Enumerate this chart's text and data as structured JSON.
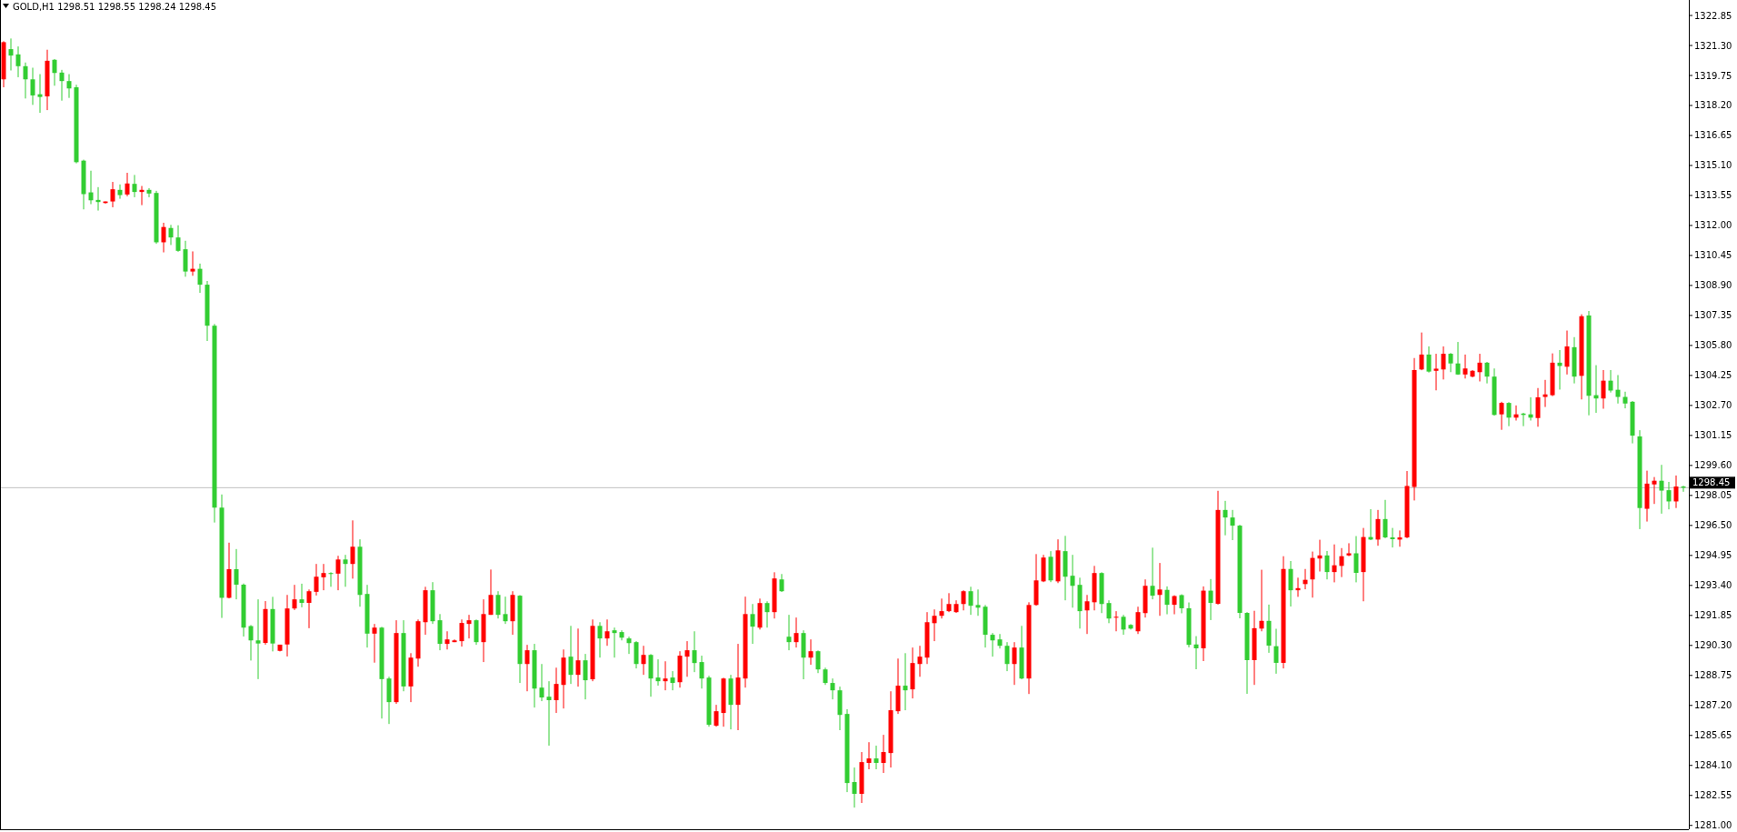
{
  "chart_data": {
    "type": "candlestick",
    "title": "GOLD,H1  1298.51 1298.55 1298.24 1298.45",
    "categories": [
      null,
      null,
      null,
      null,
      null,
      null,
      null,
      null,
      null,
      null,
      null,
      null,
      null,
      null,
      null,
      null,
      null,
      null,
      null,
      null,
      null,
      null,
      null,
      null,
      null,
      null,
      null,
      null,
      null,
      null,
      null,
      null,
      null,
      null,
      null,
      null,
      null,
      null,
      null,
      null,
      null,
      null,
      null,
      null,
      null,
      null,
      null,
      null,
      null,
      null,
      null,
      null,
      null,
      null,
      null,
      null,
      null,
      null,
      null,
      null,
      null,
      null,
      null,
      null,
      null,
      null,
      null,
      null,
      null,
      null,
      null,
      null,
      null,
      null,
      null,
      null,
      null,
      null,
      null,
      null,
      null,
      null,
      null,
      null,
      null,
      null,
      null,
      null,
      null,
      null,
      null,
      null,
      null,
      null,
      null,
      null,
      null,
      null,
      null,
      null,
      null,
      null,
      null,
      null,
      null,
      null,
      null,
      null,
      null,
      null,
      null,
      null,
      null,
      null,
      null,
      null,
      null,
      null,
      null,
      null,
      null,
      null,
      null,
      null,
      null,
      null,
      null,
      null,
      null,
      null,
      null,
      null,
      null,
      null,
      null,
      null,
      null,
      null,
      null,
      null,
      null,
      null,
      null,
      null,
      null,
      null,
      null,
      null,
      null,
      null,
      null,
      null,
      null,
      null,
      null,
      null,
      null,
      null,
      null,
      null,
      null,
      null,
      null,
      null,
      null,
      null,
      null,
      null,
      null,
      null,
      null,
      null,
      null,
      null,
      null,
      null,
      null,
      null,
      null,
      null,
      null,
      null,
      null,
      null,
      null,
      null,
      null,
      null,
      null,
      null,
      null,
      null,
      null,
      null,
      null,
      null,
      null,
      null,
      null,
      null,
      null,
      null,
      null,
      null,
      null,
      null,
      null,
      null,
      null,
      null,
      null,
      null,
      null,
      null,
      null,
      null,
      null,
      null,
      null,
      null,
      null,
      null,
      null,
      null,
      null,
      null,
      null,
      null,
      null,
      null,
      null,
      null
    ],
    "ohlc": [
      [
        1319.55,
        1321.52,
        1319.14,
        1321.47
      ],
      [
        1321.11,
        1321.66,
        1320.01,
        1320.78
      ],
      [
        1320.84,
        1321.25,
        1319.66,
        1320.23
      ],
      [
        1320.23,
        1320.42,
        1318.56,
        1319.55
      ],
      [
        1319.55,
        1320.15,
        1318.23,
        1318.72
      ],
      [
        1318.78,
        1319.82,
        1317.82,
        1318.64
      ],
      [
        1318.67,
        1321.08,
        1317.96,
        1320.51
      ],
      [
        1320.56,
        1320.6,
        1319.22,
        1319.88
      ],
      [
        1319.9,
        1320.04,
        1318.45,
        1319.46
      ],
      [
        1319.46,
        1319.82,
        1318.59,
        1319.08
      ],
      [
        1319.14,
        1319.27,
        1315.21,
        1315.27
      ],
      [
        1315.35,
        1315.4,
        1312.83,
        1313.62
      ],
      [
        1313.71,
        1314.83,
        1313.1,
        1313.3
      ],
      [
        1313.32,
        1313.98,
        1312.77,
        1313.21
      ],
      [
        1313.16,
        1313.24,
        1313.13,
        1313.24
      ],
      [
        1313.24,
        1314.25,
        1312.94,
        1313.87
      ],
      [
        1313.84,
        1314.12,
        1313.38,
        1313.57
      ],
      [
        1313.6,
        1314.72,
        1313.51,
        1314.17
      ],
      [
        1314.15,
        1314.61,
        1313.46,
        1313.73
      ],
      [
        1313.73,
        1314.04,
        1313.05,
        1313.84
      ],
      [
        1313.84,
        1313.93,
        1313.46,
        1313.65
      ],
      [
        1313.68,
        1313.79,
        1311.05,
        1311.13
      ],
      [
        1311.13,
        1312.14,
        1310.61,
        1311.92
      ],
      [
        1311.87,
        1312.03,
        1310.99,
        1311.38
      ],
      [
        1311.38,
        1312.01,
        1310.64,
        1310.69
      ],
      [
        1310.77,
        1311.21,
        1309.35,
        1309.62
      ],
      [
        1309.62,
        1310.66,
        1309.4,
        1309.76
      ],
      [
        1309.76,
        1310.03,
        1308.52,
        1308.94
      ],
      [
        1308.94,
        1309.13,
        1306.03,
        1306.82
      ],
      [
        1306.82,
        1306.91,
        1296.65,
        1297.42
      ],
      [
        1297.42,
        1298.1,
        1291.72,
        1292.76
      ],
      [
        1292.76,
        1295.61,
        1292.73,
        1294.24
      ],
      [
        1294.24,
        1295.28,
        1292.68,
        1293.44
      ],
      [
        1293.44,
        1293.5,
        1290.76,
        1291.22
      ],
      [
        1291.3,
        1291.35,
        1289.52,
        1290.56
      ],
      [
        1290.56,
        1292.68,
        1288.56,
        1290.4
      ],
      [
        1290.43,
        1292.59,
        1290.34,
        1292.18
      ],
      [
        1292.18,
        1292.81,
        1289.99,
        1290.4
      ],
      [
        1290.02,
        1290.34,
        1289.99,
        1290.34
      ],
      [
        1290.35,
        1292.91,
        1289.73,
        1292.21
      ],
      [
        1292.21,
        1293.43,
        1292.13,
        1292.68
      ],
      [
        1292.68,
        1293.49,
        1292.27,
        1292.5
      ],
      [
        1292.5,
        1293.19,
        1291.19,
        1293.1
      ],
      [
        1293.07,
        1294.51,
        1292.88,
        1293.85
      ],
      [
        1293.82,
        1294.51,
        1293.15,
        1294.04
      ],
      [
        1294.04,
        1294.08,
        1293.33,
        1293.99
      ],
      [
        1294.01,
        1294.93,
        1293.15,
        1294.74
      ],
      [
        1294.74,
        1294.98,
        1293.33,
        1294.51
      ],
      [
        1294.51,
        1296.76,
        1293.75,
        1295.4
      ],
      [
        1295.4,
        1295.78,
        1292.3,
        1292.91
      ],
      [
        1292.96,
        1293.43,
        1290.19,
        1290.91
      ],
      [
        1290.91,
        1291.41,
        1289.41,
        1291.22
      ],
      [
        1291.22,
        1291.26,
        1286.52,
        1288.56
      ],
      [
        1288.59,
        1288.68,
        1286.24,
        1287.37
      ],
      [
        1287.37,
        1291.6,
        1287.28,
        1290.94
      ],
      [
        1290.94,
        1291.6,
        1287.93,
        1288.18
      ],
      [
        1288.18,
        1289.9,
        1287.37,
        1289.67
      ],
      [
        1289.62,
        1291.64,
        1289.2,
        1291.55
      ],
      [
        1291.5,
        1293.33,
        1290.85,
        1293.15
      ],
      [
        1293.15,
        1293.57,
        1291.41,
        1291.55
      ],
      [
        1291.6,
        1291.92,
        1290.05,
        1290.38
      ],
      [
        1290.38,
        1291.03,
        1290.09,
        1290.61
      ],
      [
        1290.47,
        1290.61,
        1290.47,
        1290.56
      ],
      [
        1290.52,
        1291.64,
        1290.24,
        1291.46
      ],
      [
        1291.41,
        1291.88,
        1290.66,
        1291.6
      ],
      [
        1291.6,
        1291.64,
        1290.33,
        1290.47
      ],
      [
        1290.47,
        1292.68,
        1289.44,
        1291.92
      ],
      [
        1291.88,
        1294.22,
        1291.88,
        1292.91
      ],
      [
        1292.91,
        1293.1,
        1291.69,
        1291.88
      ],
      [
        1291.92,
        1292.82,
        1291.41,
        1291.55
      ],
      [
        1291.55,
        1293.1,
        1290.85,
        1292.91
      ],
      [
        1292.87,
        1292.9,
        1288.36,
        1289.34
      ],
      [
        1289.34,
        1290.33,
        1287.93,
        1290.05
      ],
      [
        1290.05,
        1290.38,
        1287.09,
        1288.07
      ],
      [
        1288.12,
        1289.34,
        1287.42,
        1287.61
      ],
      [
        1287.65,
        1288.45,
        1285.12,
        1287.47
      ],
      [
        1287.47,
        1289.15,
        1286.81,
        1288.31
      ],
      [
        1288.26,
        1290.09,
        1287.04,
        1289.67
      ],
      [
        1289.72,
        1291.31,
        1288.31,
        1288.78
      ],
      [
        1288.78,
        1291.17,
        1288.17,
        1289.53
      ],
      [
        1289.53,
        1289.86,
        1287.51,
        1288.5
      ],
      [
        1288.55,
        1291.64,
        1288.45,
        1291.31
      ],
      [
        1291.31,
        1291.5,
        1289.67,
        1290.66
      ],
      [
        1290.66,
        1291.64,
        1290.28,
        1291.03
      ],
      [
        1291.08,
        1291.22,
        1289.67,
        1290.94
      ],
      [
        1290.99,
        1291.08,
        1290.56,
        1290.7
      ],
      [
        1290.66,
        1290.75,
        1289.86,
        1290.42
      ],
      [
        1290.47,
        1290.52,
        1289.11,
        1289.34
      ],
      [
        1289.34,
        1290.28,
        1288.78,
        1289.81
      ],
      [
        1289.81,
        1289.85,
        1287.65,
        1288.59
      ],
      [
        1288.64,
        1289.58,
        1288.22,
        1288.45
      ],
      [
        1288.45,
        1289.48,
        1287.98,
        1288.59
      ],
      [
        1288.64,
        1288.97,
        1287.98,
        1288.36
      ],
      [
        1288.4,
        1290,
        1288.12,
        1289.77
      ],
      [
        1289.72,
        1290.52,
        1288.68,
        1290.05
      ],
      [
        1290.05,
        1291.03,
        1288.92,
        1289.39
      ],
      [
        1289.44,
        1289.77,
        1288.07,
        1288.59
      ],
      [
        1288.64,
        1288.73,
        1286.1,
        1286.2
      ],
      [
        1286.15,
        1287.23,
        1286.1,
        1286.9
      ],
      [
        1286.81,
        1288.63,
        1286.1,
        1288.59
      ],
      [
        1288.59,
        1288.78,
        1285.96,
        1287.23
      ],
      [
        1287.23,
        1290.38,
        1285.92,
        1288.64
      ],
      [
        1288.59,
        1292.82,
        1288.12,
        1291.92
      ],
      [
        1291.92,
        1292.44,
        1290.38,
        1291.27
      ],
      [
        1291.22,
        1292.72,
        1291.12,
        1292.49
      ],
      [
        1292.49,
        1292.58,
        1291.22,
        1292.02
      ],
      [
        1292.02,
        1294.08,
        1291.69,
        1293.76
      ],
      [
        1293.71,
        1293.99,
        1293.06,
        1293.1
      ],
      [
        1290.75,
        1291.88,
        1290.05,
        1290.47
      ],
      [
        1290.47,
        1291.74,
        1290.19,
        1290.94
      ],
      [
        1290.94,
        1291.08,
        1288.55,
        1289.67
      ],
      [
        1289.67,
        1290.61,
        1289.3,
        1290
      ],
      [
        1290,
        1290.04,
        1288.87,
        1289.06
      ],
      [
        1289.06,
        1289.15,
        1288.26,
        1288.36
      ],
      [
        1288.36,
        1288.59,
        1287.51,
        1287.98
      ],
      [
        1287.98,
        1288.17,
        1285.92,
        1286.71
      ],
      [
        1286.76,
        1287,
        1282.72,
        1283.19
      ],
      [
        1283.24,
        1283.99,
        1281.92,
        1282.63
      ],
      [
        1282.63,
        1284.79,
        1282.16,
        1284.27
      ],
      [
        1284.23,
        1285.3,
        1283.9,
        1284.46
      ],
      [
        1284.46,
        1285.12,
        1283.9,
        1284.23
      ],
      [
        1284.23,
        1285.68,
        1283.71,
        1284.79
      ],
      [
        1284.74,
        1287.93,
        1283.99,
        1286.95
      ],
      [
        1286.9,
        1289.62,
        1286.76,
        1288.22
      ],
      [
        1288.22,
        1289.9,
        1286.95,
        1287.98
      ],
      [
        1288.03,
        1290.19,
        1287.56,
        1289.39
      ],
      [
        1289.34,
        1290.28,
        1288.68,
        1289.72
      ],
      [
        1289.67,
        1292.02,
        1289.34,
        1291.5
      ],
      [
        1291.45,
        1292.16,
        1290.52,
        1291.83
      ],
      [
        1291.83,
        1292.72,
        1291.69,
        1292.07
      ],
      [
        1292.07,
        1293,
        1292.02,
        1292.44
      ],
      [
        1292.02,
        1292.63,
        1291.98,
        1292.44
      ],
      [
        1292.44,
        1293.15,
        1292.11,
        1293.1
      ],
      [
        1293.1,
        1293.33,
        1291.88,
        1292.35
      ],
      [
        1292.39,
        1293.19,
        1291.83,
        1292.25
      ],
      [
        1292.3,
        1292.39,
        1290.19,
        1290.85
      ],
      [
        1290.85,
        1290.94,
        1289.72,
        1290.56
      ],
      [
        1290.61,
        1290.89,
        1290.14,
        1290.28
      ],
      [
        1290.28,
        1290.47,
        1288.97,
        1289.34
      ],
      [
        1289.34,
        1290.47,
        1288.26,
        1290.19
      ],
      [
        1290.19,
        1291.31,
        1288.55,
        1288.59
      ],
      [
        1288.59,
        1292.53,
        1287.79,
        1292.39
      ],
      [
        1292.39,
        1295.02,
        1292.35,
        1293.66
      ],
      [
        1293.61,
        1294.98,
        1293.57,
        1294.84
      ],
      [
        1294.88,
        1295.17,
        1293.57,
        1293.66
      ],
      [
        1293.61,
        1295.78,
        1293.52,
        1295.21
      ],
      [
        1295.17,
        1295.96,
        1292.63,
        1293.85
      ],
      [
        1293.9,
        1294.98,
        1292.25,
        1293.38
      ],
      [
        1293.43,
        1293.8,
        1291.17,
        1292.07
      ],
      [
        1292.11,
        1292.91,
        1290.89,
        1292.58
      ],
      [
        1292.53,
        1294.41,
        1292.11,
        1294.04
      ],
      [
        1294.04,
        1294.08,
        1291.97,
        1292.44
      ],
      [
        1292.49,
        1292.63,
        1291.45,
        1291.69
      ],
      [
        1291.74,
        1292.07,
        1291.03,
        1291.78
      ],
      [
        1291.78,
        1291.88,
        1290.85,
        1291.12
      ],
      [
        1291.36,
        1291.4,
        1291.12,
        1291.17
      ],
      [
        1291.03,
        1292.3,
        1290.89,
        1292.02
      ],
      [
        1291.97,
        1293.71,
        1291.74,
        1293.38
      ],
      [
        1293.38,
        1295.35,
        1292.68,
        1292.87
      ],
      [
        1292.91,
        1294.56,
        1291.83,
        1293.19
      ],
      [
        1293.17,
        1293.35,
        1291.91,
        1292.4
      ],
      [
        1292.4,
        1292.89,
        1291.91,
        1292.85
      ],
      [
        1292.9,
        1292.94,
        1291.96,
        1292.22
      ],
      [
        1292.22,
        1292.52,
        1290.2,
        1290.33
      ],
      [
        1290.35,
        1290.78,
        1289.07,
        1290.15
      ],
      [
        1290.15,
        1293.35,
        1289.49,
        1293.13
      ],
      [
        1293.13,
        1293.73,
        1291.61,
        1292.5
      ],
      [
        1292.45,
        1298.29,
        1292.41,
        1297.3
      ],
      [
        1297.3,
        1297.77,
        1295.99,
        1296.91
      ],
      [
        1296.91,
        1297.3,
        1295.74,
        1296.49
      ],
      [
        1296.49,
        1296.53,
        1291.7,
        1291.98
      ],
      [
        1291.98,
        1292.02,
        1287.8,
        1289.54
      ],
      [
        1289.54,
        1292.09,
        1288.26,
        1291.19
      ],
      [
        1291.17,
        1294.21,
        1291.03,
        1291.57
      ],
      [
        1291.57,
        1292.41,
        1289.92,
        1290.29
      ],
      [
        1290.26,
        1291.16,
        1288.84,
        1289.4
      ],
      [
        1289.4,
        1294.91,
        1289.11,
        1294.25
      ],
      [
        1294.25,
        1294.66,
        1292.31,
        1293.15
      ],
      [
        1293.15,
        1293.8,
        1292.81,
        1293.26
      ],
      [
        1293.47,
        1294.25,
        1293.2,
        1293.69
      ],
      [
        1293.71,
        1295.15,
        1292.77,
        1294.82
      ],
      [
        1294.79,
        1295.76,
        1294.12,
        1294.95
      ],
      [
        1294.95,
        1295.18,
        1293.71,
        1294.09
      ],
      [
        1294.09,
        1295.52,
        1293.56,
        1294.44
      ],
      [
        1294.41,
        1295.33,
        1293.83,
        1294.91
      ],
      [
        1294.95,
        1295.58,
        1294.91,
        1295.06
      ],
      [
        1295.06,
        1295.95,
        1293.56,
        1294.05
      ],
      [
        1294.09,
        1296.37,
        1292.58,
        1295.9
      ],
      [
        1295.9,
        1297.34,
        1295.74,
        1295.77
      ],
      [
        1295.77,
        1297.3,
        1295.45,
        1296.83
      ],
      [
        1296.83,
        1297.82,
        1295.84,
        1295.88
      ],
      [
        1295.88,
        1296.37,
        1295.36,
        1295.79
      ],
      [
        1295.77,
        1296.24,
        1295.4,
        1295.88
      ],
      [
        1295.88,
        1299.31,
        1295.84,
        1298.54
      ],
      [
        1298.49,
        1305.15,
        1297.79,
        1304.53
      ],
      [
        1304.56,
        1306.47,
        1304.52,
        1305.33
      ],
      [
        1305.33,
        1305.75,
        1304.4,
        1304.45
      ],
      [
        1304.49,
        1305.37,
        1303.48,
        1304.6
      ],
      [
        1304.56,
        1305.75,
        1304.04,
        1305.37
      ],
      [
        1305.37,
        1305.41,
        1304.42,
        1304.87
      ],
      [
        1304.87,
        1305.98,
        1304.28,
        1304.3
      ],
      [
        1304.3,
        1305.33,
        1304.09,
        1304.61
      ],
      [
        1304.19,
        1304.53,
        1304.15,
        1304.49
      ],
      [
        1304.42,
        1305.37,
        1303.94,
        1304.91
      ],
      [
        1304.91,
        1304.95,
        1303.84,
        1304.19
      ],
      [
        1304.19,
        1304.61,
        1302.17,
        1302.21
      ],
      [
        1302.24,
        1302.89,
        1301.44,
        1302.83
      ],
      [
        1302.83,
        1302.87,
        1301.63,
        1302.07
      ],
      [
        1302.07,
        1302.7,
        1301.92,
        1302.24
      ],
      [
        1302.28,
        1302.32,
        1301.63,
        1302.21
      ],
      [
        1302.24,
        1303.12,
        1301.92,
        1302.07
      ],
      [
        1302.05,
        1303.6,
        1301.6,
        1303.12
      ],
      [
        1303.14,
        1304.02,
        1302.62,
        1303.27
      ],
      [
        1303.23,
        1305.39,
        1303.18,
        1304.91
      ],
      [
        1304.91,
        1305.56,
        1303.52,
        1304.74
      ],
      [
        1304.7,
        1306.57,
        1304.3,
        1305.75
      ],
      [
        1305.71,
        1306.23,
        1303.84,
        1304.19
      ],
      [
        1304.23,
        1307.41,
        1303.01,
        1307.31
      ],
      [
        1307.35,
        1307.58,
        1302.19,
        1303.2
      ],
      [
        1303.23,
        1304.78,
        1302.32,
        1303.06
      ],
      [
        1303.06,
        1304.53,
        1302.53,
        1303.98
      ],
      [
        1303.98,
        1304.53,
        1303.37,
        1303.47
      ],
      [
        1303.51,
        1304.27,
        1302.8,
        1303.14
      ],
      [
        1303.14,
        1303.41,
        1302.55,
        1302.8
      ],
      [
        1302.89,
        1302.93,
        1300.74,
        1301.14
      ],
      [
        1301.1,
        1301.42,
        1296.31,
        1297.4
      ],
      [
        1297.36,
        1299.33,
        1296.7,
        1298.66
      ],
      [
        1298.62,
        1299,
        1297.61,
        1298.81
      ],
      [
        1298.81,
        1299.63,
        1297.11,
        1298.3
      ],
      [
        1298.32,
        1298.75,
        1297.33,
        1297.74
      ],
      [
        1297.74,
        1299.08,
        1297.4,
        1298.51
      ],
      [
        1298.51,
        1298.55,
        1298.24,
        1298.45
      ]
    ],
    "colors": [
      "#ff0000",
      "#32cd32",
      "#32cd32",
      "#32cd32",
      "#32cd32",
      "#32cd32",
      "#ff0000",
      "#32cd32",
      "#32cd32",
      "#32cd32",
      "#32cd32",
      "#32cd32",
      "#32cd32",
      "#32cd32",
      "#ff0000",
      "#ff0000",
      "#32cd32",
      "#ff0000",
      "#32cd32",
      "#ff0000",
      "#32cd32",
      "#32cd32",
      "#ff0000",
      "#32cd32",
      "#32cd32",
      "#32cd32",
      "#ff0000",
      "#32cd32",
      "#32cd32",
      "#32cd32",
      "#32cd32",
      "#ff0000",
      "#32cd32",
      "#32cd32",
      "#32cd32",
      "#32cd32",
      "#ff0000",
      "#32cd32",
      "#ff0000",
      "#ff0000",
      "#ff0000",
      "#32cd32",
      "#ff0000",
      "#ff0000",
      "#ff0000",
      "#32cd32",
      "#ff0000",
      "#32cd32",
      "#ff0000",
      "#32cd32",
      "#32cd32",
      "#ff0000",
      "#32cd32",
      "#32cd32",
      "#ff0000",
      "#32cd32",
      "#ff0000",
      "#ff0000",
      "#ff0000",
      "#32cd32",
      "#32cd32",
      "#ff0000",
      "#ff0000",
      "#ff0000",
      "#ff0000",
      "#32cd32",
      "#ff0000",
      "#ff0000",
      "#32cd32",
      "#32cd32",
      "#ff0000",
      "#32cd32",
      "#ff0000",
      "#32cd32",
      "#32cd32",
      "#32cd32",
      "#ff0000",
      "#ff0000",
      "#32cd32",
      "#ff0000",
      "#32cd32",
      "#ff0000",
      "#32cd32",
      "#ff0000",
      "#32cd32",
      "#32cd32",
      "#32cd32",
      "#32cd32",
      "#ff0000",
      "#32cd32",
      "#32cd32",
      "#ff0000",
      "#32cd32",
      "#ff0000",
      "#ff0000",
      "#32cd32",
      "#32cd32",
      "#32cd32",
      "#ff0000",
      "#ff0000",
      "#32cd32",
      "#ff0000",
      "#ff0000",
      "#32cd32",
      "#ff0000",
      "#32cd32",
      "#ff0000",
      "#32cd32",
      "#32cd32",
      "#ff0000",
      "#32cd32",
      "#ff0000",
      "#32cd32",
      "#32cd32",
      "#32cd32",
      "#32cd32",
      "#32cd32",
      "#32cd32",
      "#ff0000",
      "#ff0000",
      "#32cd32",
      "#ff0000",
      "#ff0000",
      "#ff0000",
      "#32cd32",
      "#ff0000",
      "#ff0000",
      "#ff0000",
      "#ff0000",
      "#ff0000",
      "#ff0000",
      "#ff0000",
      "#ff0000",
      "#32cd32",
      "#32cd32",
      "#32cd32",
      "#32cd32",
      "#32cd32",
      "#32cd32",
      "#ff0000",
      "#32cd32",
      "#ff0000",
      "#ff0000",
      "#ff0000",
      "#32cd32",
      "#ff0000",
      "#32cd32",
      "#32cd32",
      "#32cd32",
      "#ff0000",
      "#ff0000",
      "#32cd32",
      "#32cd32",
      "#ff0000",
      "#32cd32",
      "#32cd32",
      "#ff0000",
      "#ff0000",
      "#32cd32",
      "#ff0000",
      "#32cd32",
      "#ff0000",
      "#32cd32",
      "#32cd32",
      "#32cd32",
      "#ff0000",
      "#32cd32",
      "#ff0000",
      "#32cd32",
      "#32cd32",
      "#32cd32",
      "#32cd32",
      "#ff0000",
      "#ff0000",
      "#32cd32",
      "#32cd32",
      "#ff0000",
      "#32cd32",
      "#ff0000",
      "#ff0000",
      "#ff0000",
      "#ff0000",
      "#32cd32",
      "#ff0000",
      "#ff0000",
      "#ff0000",
      "#32cd32",
      "#ff0000",
      "#32cd32",
      "#ff0000",
      "#32cd32",
      "#32cd32",
      "#ff0000",
      "#ff0000",
      "#ff0000",
      "#ff0000",
      "#32cd32",
      "#ff0000",
      "#ff0000",
      "#32cd32",
      "#32cd32",
      "#ff0000",
      "#ff0000",
      "#ff0000",
      "#32cd32",
      "#32cd32",
      "#ff0000",
      "#32cd32",
      "#ff0000",
      "#32cd32",
      "#32cd32",
      "#ff0000",
      "#ff0000",
      "#ff0000",
      "#32cd32",
      "#ff0000",
      "#32cd32",
      "#ff0000",
      "#32cd32",
      "#32cd32",
      "#ff0000",
      "#32cd32",
      "#32cd32",
      "#32cd32",
      "#32cd32",
      "#32cd32",
      "#ff0000",
      "#ff0000",
      "#32cd32",
      "#32cd32",
      "#ff0000",
      "#32cd32"
    ],
    "ylim": [
      1280.8,
      1323.65
    ],
    "yticks": [
      {
        "value": 1281,
        "label": "1281.00"
      },
      {
        "value": 1282.55,
        "label": "1282.55"
      },
      {
        "value": 1284.1,
        "label": "1284.10"
      },
      {
        "value": 1285.65,
        "label": "1285.65"
      },
      {
        "value": 1287.2,
        "label": "1287.20"
      },
      {
        "value": 1288.75,
        "label": "1288.75"
      },
      {
        "value": 1290.3,
        "label": "1290.30"
      },
      {
        "value": 1291.85,
        "label": "1291.85"
      },
      {
        "value": 1293.4,
        "label": "1293.40"
      },
      {
        "value": 1294.95,
        "label": "1294.95"
      },
      {
        "value": 1296.5,
        "label": "1296.50"
      },
      {
        "value": 1298.05,
        "label": "1298.05"
      },
      {
        "value": 1299.6,
        "label": "1299.60"
      },
      {
        "value": 1301.15,
        "label": "1301.15"
      },
      {
        "value": 1302.7,
        "label": "1302.70"
      },
      {
        "value": 1304.25,
        "label": "1304.25"
      },
      {
        "value": 1305.8,
        "label": "1305.80"
      },
      {
        "value": 1307.35,
        "label": "1307.35"
      },
      {
        "value": 1308.9,
        "label": "1308.90"
      },
      {
        "value": 1310.45,
        "label": "1310.45"
      },
      {
        "value": 1312,
        "label": "1312.00"
      },
      {
        "value": 1313.55,
        "label": "1313.55"
      },
      {
        "value": 1315.1,
        "label": "1315.10"
      },
      {
        "value": 1316.65,
        "label": "1316.65"
      },
      {
        "value": 1318.2,
        "label": "1318.20"
      },
      {
        "value": 1319.75,
        "label": "1319.75"
      },
      {
        "value": 1321.3,
        "label": "1321.30"
      },
      {
        "value": 1322.85,
        "label": "1322.85"
      }
    ],
    "ref_lines": [
      {
        "axis": "y",
        "value": 1298.45,
        "label": "1298.45",
        "color": "#c0c0c0"
      }
    ],
    "tick_labels": "y"
  }
}
